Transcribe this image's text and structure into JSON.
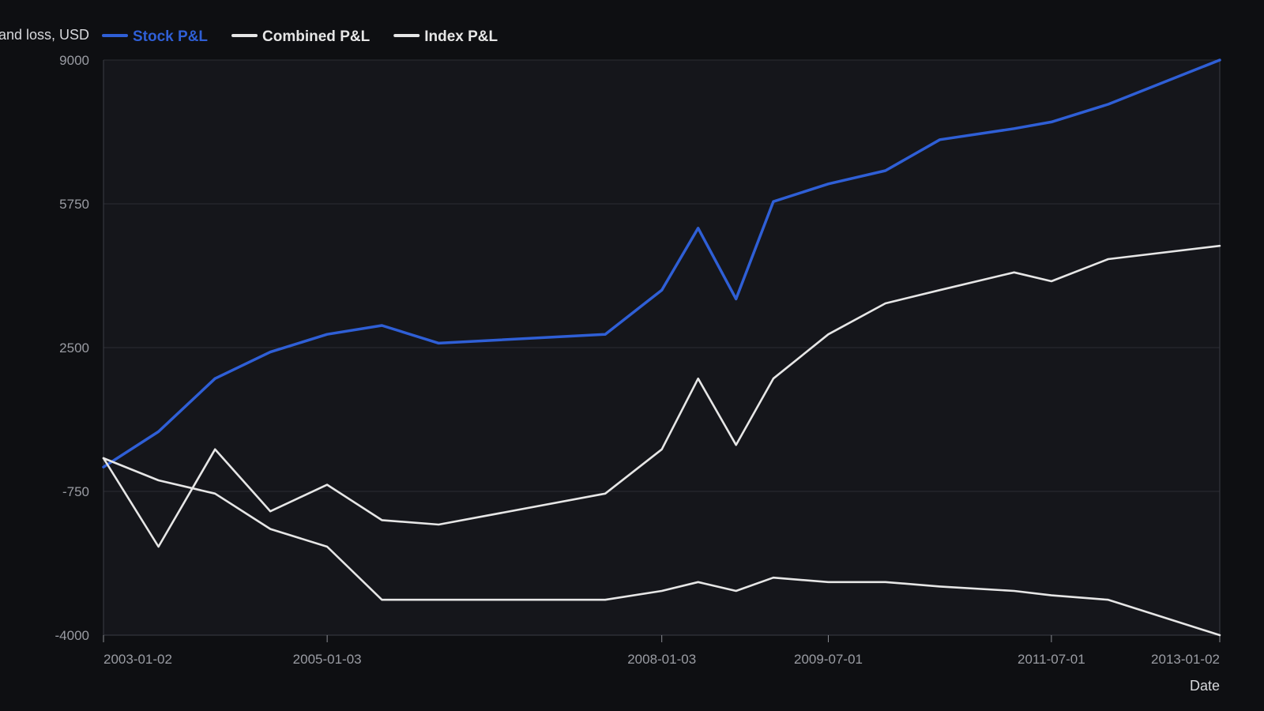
{
  "chart_data": {
    "type": "line",
    "ylabel": "Profit and loss, USD",
    "xlabel": "Date",
    "ylim": [
      -4000,
      9000
    ],
    "yticks": [
      9000,
      5750,
      2500,
      -750,
      -4000
    ],
    "xticks": [
      "2003-01-02",
      "2005-01-03",
      "2008-01-03",
      "2009-07-01",
      "2011-07-01",
      "2013-01-02"
    ],
    "x": [
      "2003-01-02",
      "2003-07-01",
      "2004-01-02",
      "2004-07-01",
      "2005-01-03",
      "2005-07-01",
      "2006-01-03",
      "2007-07-02",
      "2008-01-03",
      "2008-05-01",
      "2008-09-02",
      "2009-01-02",
      "2009-07-01",
      "2010-01-04",
      "2010-07-01",
      "2011-03-01",
      "2011-07-01",
      "2012-01-03",
      "2013-01-02"
    ],
    "grid": true,
    "legend_position": "top-left",
    "series": [
      {
        "name": "Stock P&L",
        "color": "#2f5fd6",
        "values": [
          -200,
          600,
          1800,
          2400,
          2800,
          3000,
          2600,
          2800,
          3800,
          5200,
          3600,
          5800,
          6200,
          6500,
          7200,
          7450,
          7600,
          8000,
          9000
        ]
      },
      {
        "name": "Combined P&L",
        "color": "#e6e6e6",
        "values": [
          0,
          -2000,
          200,
          -1200,
          -600,
          -1400,
          -1500,
          -800,
          200,
          1800,
          300,
          1800,
          2800,
          3500,
          3800,
          4200,
          4000,
          4500,
          4800
        ]
      },
      {
        "name": "Index P&L",
        "color": "#e6e6e6",
        "values": [
          0,
          -500,
          -800,
          -1600,
          -2000,
          -3200,
          -3200,
          -3200,
          -3000,
          -2800,
          -3000,
          -2700,
          -2800,
          -2800,
          -2900,
          -3000,
          -3100,
          -3200,
          -4000
        ]
      }
    ]
  }
}
